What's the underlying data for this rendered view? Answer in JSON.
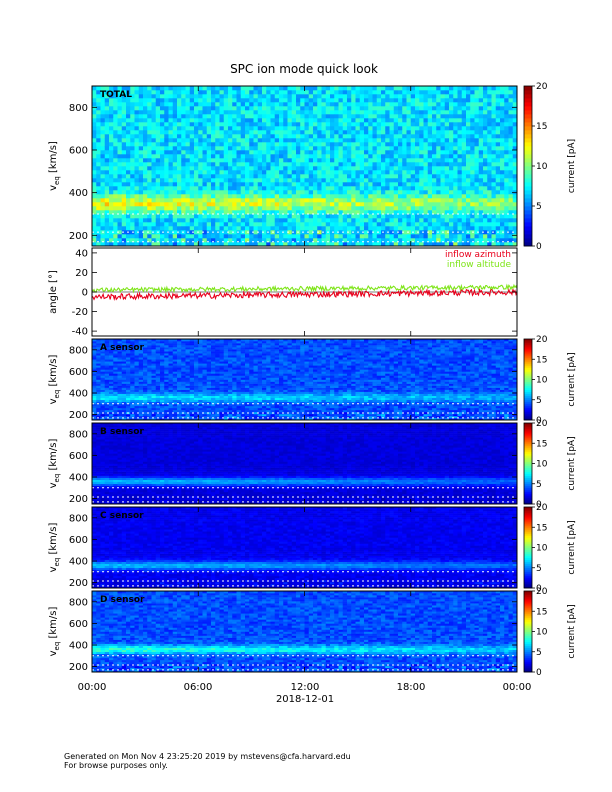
{
  "chart_data": [
    {
      "type": "heatmap",
      "title": "SPC ion mode quick look",
      "label": "TOTAL",
      "ylabel": "v",
      "ylabel_sub": "eq",
      "ylabel_unit": "[km/s]",
      "ylim": [
        150,
        900
      ],
      "yticks": [
        200,
        400,
        600,
        800
      ],
      "colorbar": {
        "label": "current [pA]",
        "range": [
          0,
          20
        ],
        "ticks": [
          0,
          5,
          10,
          15,
          20
        ]
      },
      "profile": {
        "peak_velocity": 350,
        "background_level": 7,
        "peak_level": 12
      }
    },
    {
      "type": "line",
      "ylabel": "angle [°]",
      "ylim": [
        -45,
        45
      ],
      "yticks": [
        -40,
        -20,
        0,
        20,
        40
      ],
      "series": [
        {
          "name": "inflow azimuth",
          "color": "#e8001c",
          "start_value": -5,
          "end_value": 0
        },
        {
          "name": "inflow altitude",
          "color": "#7fe51a",
          "start_value": 2,
          "end_value": 5
        }
      ]
    },
    {
      "type": "heatmap",
      "label": "A sensor",
      "ylabel": "v",
      "ylabel_sub": "eq",
      "ylabel_unit": "[km/s]",
      "ylim": [
        150,
        900
      ],
      "yticks": [
        200,
        400,
        600,
        800
      ],
      "colorbar": {
        "label": "current [pA]",
        "range": [
          0,
          20
        ],
        "ticks": [
          0,
          5,
          10,
          15,
          20
        ]
      },
      "profile": {
        "peak_velocity": 360,
        "background_level": 4,
        "peak_level": 7
      }
    },
    {
      "type": "heatmap",
      "label": "B sensor",
      "ylabel": "v",
      "ylabel_sub": "eq",
      "ylabel_unit": "[km/s]",
      "ylim": [
        150,
        900
      ],
      "yticks": [
        200,
        400,
        600,
        800
      ],
      "colorbar": {
        "label": "current [pA]",
        "range": [
          0,
          20
        ],
        "ticks": [
          0,
          5,
          10,
          15,
          20
        ]
      },
      "profile": {
        "peak_velocity": 360,
        "background_level": 1.8,
        "peak_level": 6
      }
    },
    {
      "type": "heatmap",
      "label": "C sensor",
      "ylabel": "v",
      "ylabel_sub": "eq",
      "ylabel_unit": "[km/s]",
      "ylim": [
        150,
        900
      ],
      "yticks": [
        200,
        400,
        600,
        800
      ],
      "colorbar": {
        "label": "current [pA]",
        "range": [
          0,
          20
        ],
        "ticks": [
          0,
          5,
          10,
          15,
          20
        ]
      },
      "profile": {
        "peak_velocity": 360,
        "background_level": 2.2,
        "peak_level": 6
      }
    },
    {
      "type": "heatmap",
      "label": "D sensor",
      "ylabel": "v",
      "ylabel_sub": "eq",
      "ylabel_unit": "[km/s]",
      "ylim": [
        150,
        900
      ],
      "yticks": [
        200,
        400,
        600,
        800
      ],
      "colorbar": {
        "label": "current [pA]",
        "range": [
          0,
          20
        ],
        "ticks": [
          0,
          5,
          10,
          15,
          20
        ]
      },
      "profile": {
        "peak_velocity": 360,
        "background_level": 4,
        "peak_level": 8
      }
    }
  ],
  "x_axis": {
    "ticks": [
      "00:00",
      "06:00",
      "12:00",
      "18:00",
      "00:00"
    ],
    "xlabel": "2018-12-01",
    "range_hours": [
      0,
      24
    ]
  },
  "footer": {
    "line1": "Generated on Mon Nov  4 23:25:20 2019 by mstevens@cfa.harvard.edu",
    "line2": "For browse purposes only."
  }
}
